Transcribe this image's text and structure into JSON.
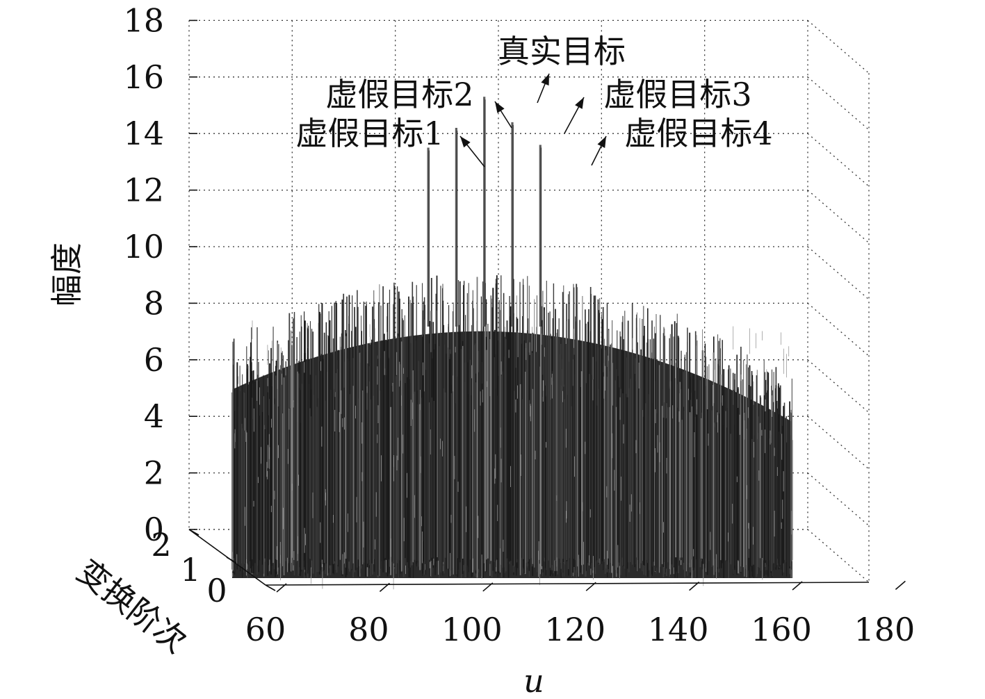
{
  "chart_data": {
    "type": "surface-3d",
    "title": "",
    "zlabel": "幅度",
    "xlabel": "u",
    "ylabel": "变换阶次",
    "zlim": [
      0,
      18
    ],
    "xlim": [
      60,
      180
    ],
    "ylim": [
      0,
      2
    ],
    "z_ticks": [
      "0",
      "2",
      "4",
      "6",
      "8",
      "10",
      "12",
      "14",
      "16",
      "18"
    ],
    "x_ticks": [
      "60",
      "80",
      "100",
      "120",
      "140",
      "160",
      "180"
    ],
    "y_ticks": [
      "2",
      "1",
      "0"
    ],
    "grid": true,
    "surface_color": "#2b2b2b",
    "noise_floor": {
      "x_range": [
        68,
        168
      ],
      "typical_amplitude": [
        4.5,
        8.5
      ]
    },
    "peaks": [
      {
        "name": "虚假目标1",
        "u": 103,
        "amplitude": 13.5
      },
      {
        "name": "虚假目标2",
        "u": 108,
        "amplitude": 14.2
      },
      {
        "name": "真实目标",
        "u": 113,
        "amplitude": 15.3
      },
      {
        "name": "虚假目标3",
        "u": 118,
        "amplitude": 14.4
      },
      {
        "name": "虚假目标4",
        "u": 123,
        "amplitude": 13.6
      }
    ]
  }
}
